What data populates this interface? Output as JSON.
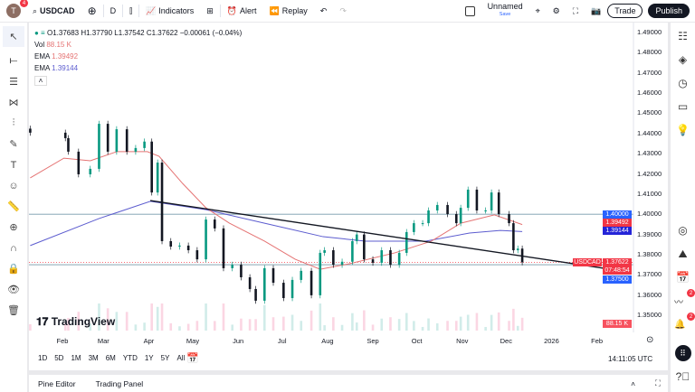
{
  "topbar": {
    "avatar_letter": "T",
    "avatar_badge": "4",
    "symbol": "USDCAD",
    "interval": "D",
    "indicators": "Indicators",
    "alert": "Alert",
    "replay": "Replay",
    "layout_name": "Unnamed",
    "layout_save": "Save",
    "trade": "Trade",
    "publish": "Publish"
  },
  "legend": {
    "ohlc": "O1.37683 H1.37790 L1.37542 C1.37622 −0.00061 (−0.04%)",
    "vol_label": "Vol",
    "vol_value": "88.15 K",
    "ema1_label": "EMA",
    "ema1_value": "1.39492",
    "ema2_label": "EMA",
    "ema2_value": "1.39144"
  },
  "colors": {
    "up": "#089981",
    "down": "#131722",
    "ema_fast": "#e57373",
    "ema_slow": "#5c5ccf",
    "price_tag": "#f23645",
    "level_tag": "#2962ff",
    "trendline": "#131722",
    "hline": "#9fb8c4"
  },
  "price_axis": {
    "ticks": [
      "1.49000",
      "1.48000",
      "1.47000",
      "1.46000",
      "1.45000",
      "1.44000",
      "1.43000",
      "1.42000",
      "1.41000",
      "1.40000",
      "1.39000",
      "1.38000",
      "1.37000",
      "1.36000",
      "1.35000"
    ],
    "tags": {
      "level_high": "1.40000",
      "ema_fast": "1.39492",
      "ema_slow": "1.39144",
      "symbol": "USDCAD",
      "last_price": "1.37622",
      "countdown": "07:48:54",
      "level_low": "1.37500",
      "volume": "88.15 K"
    }
  },
  "time_axis": [
    {
      "label": "Feb",
      "date": "2025-02-01"
    },
    {
      "label": "Mar",
      "date": "2025-03-01"
    },
    {
      "label": "Apr",
      "date": "2025-04-01"
    },
    {
      "label": "May",
      "date": "2025-05-01"
    },
    {
      "label": "Jun",
      "date": "2025-06-01"
    },
    {
      "label": "Jul",
      "date": "2025-07-01"
    },
    {
      "label": "Aug",
      "date": "2025-08-01"
    },
    {
      "label": "Sep",
      "date": "2025-09-01"
    },
    {
      "label": "Oct",
      "date": "2025-10-01"
    },
    {
      "label": "Nov",
      "date": "2025-11-01"
    },
    {
      "label": "Dec",
      "date": "2025-12-01"
    },
    {
      "label": "2026",
      "date": "2026-01-01"
    },
    {
      "label": "Feb",
      "date": "2026-02-01"
    }
  ],
  "ranges": [
    "1D",
    "5D",
    "1M",
    "3M",
    "6M",
    "YTD",
    "1Y",
    "5Y",
    "All"
  ],
  "clock": "14:11:05 UTC",
  "bottom": {
    "pine": "Pine Editor",
    "trading": "Trading Panel"
  },
  "watermark": "TradingView",
  "chart_data": {
    "type": "candlestick",
    "symbol": "USDCAD",
    "timeframe": "D",
    "ylim": [
      1.345,
      1.495
    ],
    "closes": [
      [
        "2025-01-10",
        1.4404
      ],
      [
        "2025-02-03",
        1.4377
      ],
      [
        "2025-02-05",
        1.431
      ],
      [
        "2025-02-12",
        1.4198
      ],
      [
        "2025-02-20",
        1.4225
      ],
      [
        "2025-02-26",
        1.4448
      ],
      [
        "2025-03-04",
        1.431
      ],
      [
        "2025-03-10",
        1.4421
      ],
      [
        "2025-03-17",
        1.431
      ],
      [
        "2025-03-23",
        1.4328
      ],
      [
        "2025-03-29",
        1.436
      ],
      [
        "2025-04-03",
        1.4108
      ],
      [
        "2025-04-07",
        1.4256
      ],
      [
        "2025-04-10",
        1.3867
      ],
      [
        "2025-04-16",
        1.384
      ],
      [
        "2025-04-22",
        1.3845
      ],
      [
        "2025-04-28",
        1.3822
      ],
      [
        "2025-05-04",
        1.3777
      ],
      [
        "2025-05-10",
        1.3974
      ],
      [
        "2025-05-16",
        1.393
      ],
      [
        "2025-05-22",
        1.3733
      ],
      [
        "2025-05-28",
        1.375
      ],
      [
        "2025-06-03",
        1.3688
      ],
      [
        "2025-06-09",
        1.363
      ],
      [
        "2025-06-13",
        1.3572
      ],
      [
        "2025-06-19",
        1.3733
      ],
      [
        "2025-06-25",
        1.3661
      ],
      [
        "2025-07-02",
        1.3585
      ],
      [
        "2025-07-08",
        1.3675
      ],
      [
        "2025-07-14",
        1.372
      ],
      [
        "2025-07-21",
        1.3599
      ],
      [
        "2025-07-27",
        1.3809
      ],
      [
        "2025-07-30",
        1.3822
      ],
      [
        "2025-08-05",
        1.375
      ],
      [
        "2025-08-11",
        1.3765
      ],
      [
        "2025-08-18",
        1.3867
      ],
      [
        "2025-08-21",
        1.39
      ],
      [
        "2025-08-26",
        1.3777
      ],
      [
        "2025-09-01",
        1.376
      ],
      [
        "2025-09-07",
        1.3822
      ],
      [
        "2025-09-13",
        1.375
      ],
      [
        "2025-09-19",
        1.3809
      ],
      [
        "2025-09-24",
        1.3912
      ],
      [
        "2025-09-29",
        1.3956
      ],
      [
        "2025-10-05",
        1.3956
      ],
      [
        "2025-10-09",
        1.4019
      ],
      [
        "2025-10-15",
        1.4046
      ],
      [
        "2025-10-22",
        1.4001
      ],
      [
        "2025-10-28",
        1.3956
      ],
      [
        "2025-10-31",
        1.4032
      ],
      [
        "2025-11-05",
        1.4122
      ],
      [
        "2025-11-11",
        1.4019
      ],
      [
        "2025-11-17",
        1.4019
      ],
      [
        "2025-11-21",
        1.4108
      ],
      [
        "2025-11-26",
        1.4001
      ],
      [
        "2025-12-03",
        1.3956
      ],
      [
        "2025-12-06",
        1.3822
      ],
      [
        "2025-12-09",
        1.383
      ],
      [
        "2025-12-12",
        1.37622
      ]
    ],
    "ema_fast": [
      [
        "2025-01-10",
        1.418
      ],
      [
        "2025-02-02",
        1.4278
      ],
      [
        "2025-02-20",
        1.4265
      ],
      [
        "2025-03-10",
        1.431
      ],
      [
        "2025-03-31",
        1.431
      ],
      [
        "2025-04-08",
        1.4287
      ],
      [
        "2025-04-24",
        1.4153
      ],
      [
        "2025-05-10",
        1.4032
      ],
      [
        "2025-05-26",
        1.3956
      ],
      [
        "2025-06-19",
        1.3867
      ],
      [
        "2025-07-10",
        1.3777
      ],
      [
        "2025-07-27",
        1.3728
      ],
      [
        "2025-08-16",
        1.3755
      ],
      [
        "2025-09-16",
        1.3809
      ],
      [
        "2025-10-11",
        1.3867
      ],
      [
        "2025-10-31",
        1.3956
      ],
      [
        "2025-11-23",
        1.3997
      ],
      [
        "2025-12-12",
        1.39492
      ]
    ],
    "ema_slow": [
      [
        "2025-01-10",
        1.3845
      ],
      [
        "2025-02-26",
        1.3979
      ],
      [
        "2025-04-02",
        1.4064
      ],
      [
        "2025-05-10",
        1.4023
      ],
      [
        "2025-06-19",
        1.3956
      ],
      [
        "2025-07-29",
        1.3889
      ],
      [
        "2025-08-27",
        1.3867
      ],
      [
        "2025-10-07",
        1.3867
      ],
      [
        "2025-11-06",
        1.3907
      ],
      [
        "2025-11-27",
        1.392
      ],
      [
        "2025-12-12",
        1.39144
      ]
    ],
    "trendline": [
      [
        "2025-04-02",
        1.4068
      ],
      [
        "2026-02-10",
        1.3728
      ]
    ],
    "horizontal_levels": [
      1.4,
      1.375
    ],
    "grid": false
  }
}
